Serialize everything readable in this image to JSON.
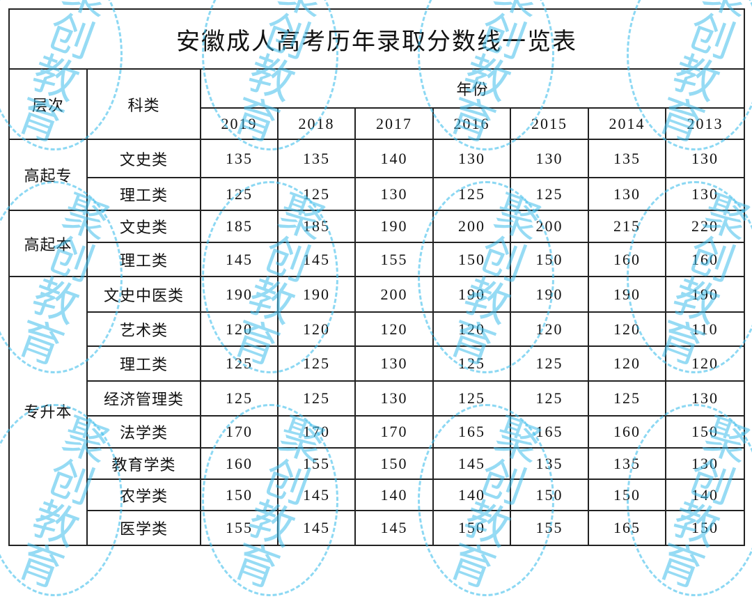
{
  "title": "安徽成人高考历年录取分数线一览表",
  "headers": {
    "level": "层次",
    "category": "科类",
    "year": "年份"
  },
  "years": [
    "2019",
    "2018",
    "2017",
    "2016",
    "2015",
    "2014",
    "2013"
  ],
  "groups": [
    {
      "level": "高起专",
      "rows": [
        {
          "category": "文史类",
          "scores": [
            "135",
            "135",
            "140",
            "130",
            "130",
            "135",
            "130"
          ]
        },
        {
          "category": "理工类",
          "scores": [
            "125",
            "125",
            "130",
            "125",
            "125",
            "130",
            "130"
          ]
        }
      ]
    },
    {
      "level": "高起本",
      "rows": [
        {
          "category": "文史类",
          "scores": [
            "185",
            "185",
            "190",
            "200",
            "200",
            "215",
            "220"
          ]
        },
        {
          "category": "理工类",
          "scores": [
            "145",
            "145",
            "155",
            "150",
            "150",
            "160",
            "160"
          ]
        }
      ]
    },
    {
      "level": "专升本",
      "rows": [
        {
          "category": "文史中医类",
          "scores": [
            "190",
            "190",
            "200",
            "190",
            "190",
            "190",
            "190"
          ]
        },
        {
          "category": "艺术类",
          "scores": [
            "120",
            "120",
            "120",
            "120",
            "120",
            "120",
            "110"
          ]
        },
        {
          "category": "理工类",
          "scores": [
            "125",
            "125",
            "130",
            "125",
            "125",
            "120",
            "120"
          ]
        },
        {
          "category": "经济管理类",
          "scores": [
            "125",
            "125",
            "130",
            "125",
            "125",
            "125",
            "130"
          ]
        },
        {
          "category": "法学类",
          "scores": [
            "170",
            "170",
            "170",
            "165",
            "165",
            "160",
            "150"
          ]
        },
        {
          "category": "教育学类",
          "scores": [
            "160",
            "155",
            "150",
            "145",
            "135",
            "135",
            "130"
          ]
        },
        {
          "category": "农学类",
          "scores": [
            "150",
            "145",
            "140",
            "140",
            "150",
            "150",
            "140"
          ]
        },
        {
          "category": "医学类",
          "scores": [
            "155",
            "145",
            "145",
            "150",
            "155",
            "165",
            "150"
          ]
        }
      ]
    }
  ],
  "watermark": {
    "text": "聚创教育",
    "color": "#40BEEB"
  }
}
